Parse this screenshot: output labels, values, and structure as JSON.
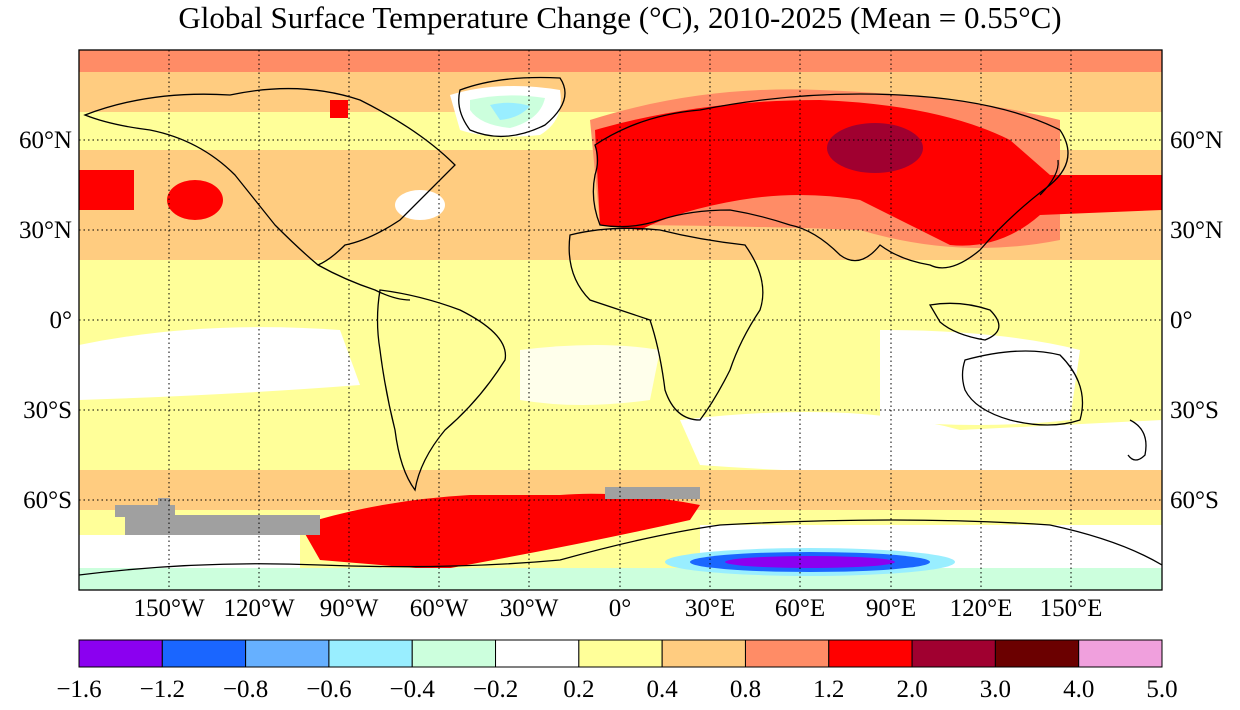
{
  "title": "Global Surface Temperature Change (°C), 2010-2025 (Mean = 0.55°C)",
  "colors": {
    "ocean_base": "#ffff99",
    "land_outline": "#000000",
    "missing": "#a0a0a0"
  },
  "lat_labels": [
    "60°N",
    "30°N",
    "0°",
    "30°S",
    "60°S"
  ],
  "lon_labels": [
    "150°W",
    "120°W",
    "90°W",
    "60°W",
    "30°W",
    "0°",
    "30°E",
    "60°E",
    "90°E",
    "120°E",
    "150°E"
  ],
  "colorbar": {
    "ticks": [
      "−1.6",
      "−1.2",
      "−0.8",
      "−0.6",
      "−0.4",
      "−0.2",
      "0.2",
      "0.4",
      "0.8",
      "1.2",
      "2.0",
      "3.0",
      "4.0",
      "5.0"
    ],
    "colors": [
      "#8b00f0",
      "#1a66ff",
      "#66b0ff",
      "#99eeff",
      "#ccffdd",
      "#ffffff",
      "#ffff99",
      "#ffcc80",
      "#ff8c66",
      "#ff0000",
      "#a00030",
      "#6b0000",
      "#f0a0dd"
    ]
  }
}
